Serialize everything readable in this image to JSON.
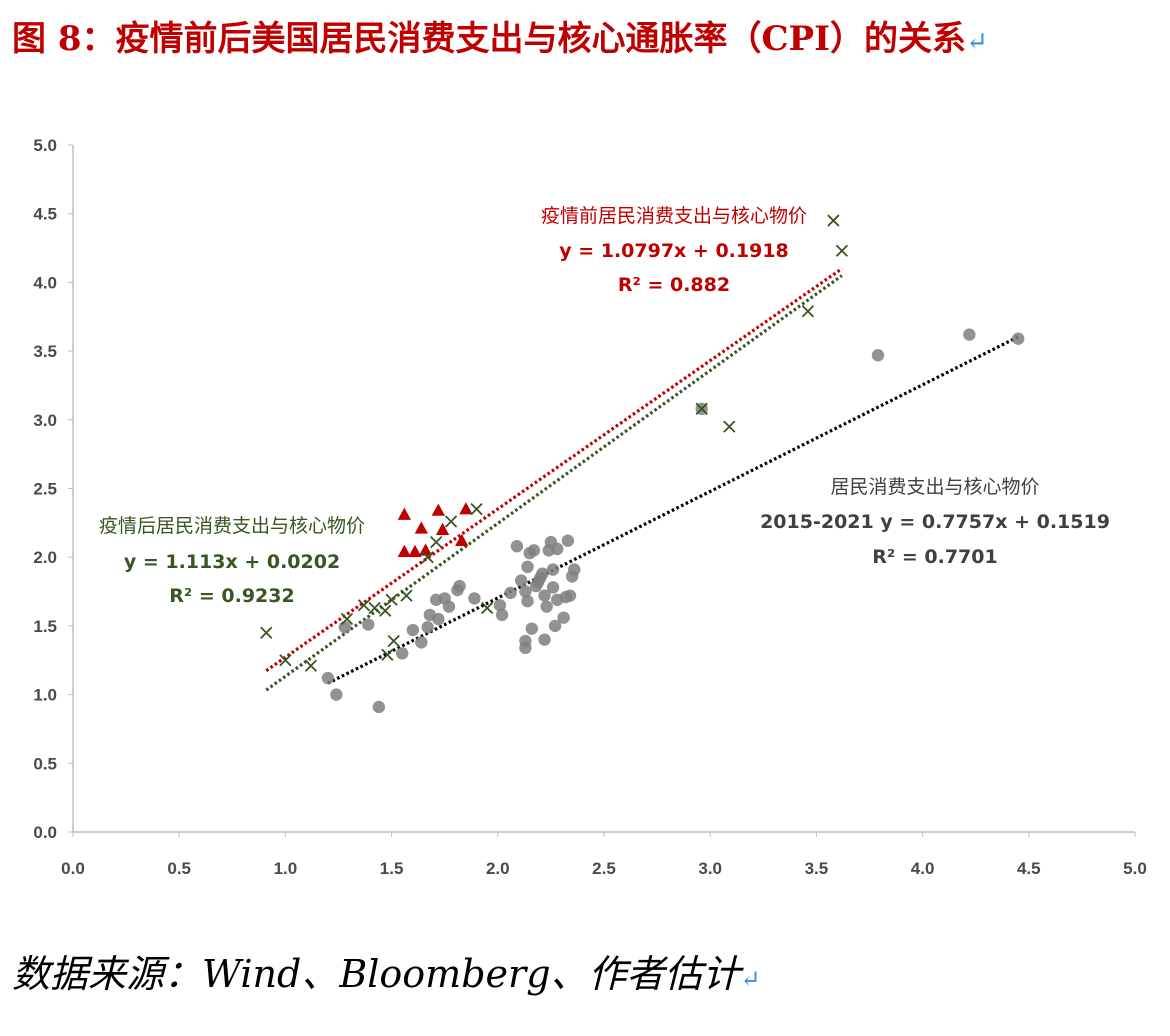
{
  "figure": {
    "title": "图 8：疫情前后美国居民消费支出与核心通胀率（CPI）的关系",
    "return_mark": "↵",
    "source": "数据来源：Wind、Bloomberg、作者估计"
  },
  "chart_data": {
    "type": "scatter",
    "xlim": [
      0,
      5
    ],
    "ylim": [
      0,
      5
    ],
    "x_ticks": [
      "0.0",
      "0.5",
      "1.0",
      "1.5",
      "2.0",
      "2.5",
      "3.0",
      "3.5",
      "4.0",
      "4.5",
      "5.0"
    ],
    "y_ticks": [
      "0.0",
      "0.5",
      "1.0",
      "1.5",
      "2.0",
      "2.5",
      "3.0",
      "3.5",
      "4.0",
      "4.5",
      "5.0"
    ],
    "grid": false,
    "legend": "none",
    "colors": {
      "pre": "#c00000",
      "post": "#375623",
      "all": "#7f7f7f",
      "all_line": "#000000"
    },
    "series": [
      {
        "key": "pre",
        "marker": "triangle",
        "points": [
          [
            1.56,
            2.31
          ],
          [
            1.72,
            2.34
          ],
          [
            1.85,
            2.35
          ],
          [
            1.64,
            2.21
          ],
          [
            1.74,
            2.2
          ],
          [
            1.56,
            2.04
          ],
          [
            1.61,
            2.04
          ],
          [
            1.66,
            2.05
          ],
          [
            1.83,
            2.12
          ]
        ],
        "trend": {
          "x_range": [
            0.91,
            3.62
          ],
          "slope": 1.0797,
          "intercept": 0.1918
        },
        "annotation": [
          "疫情前居民消费支出与核心物价",
          "y = 1.0797x + 0.1918",
          "R² = 0.882"
        ]
      },
      {
        "key": "post",
        "marker": "x",
        "points": [
          [
            0.91,
            1.45
          ],
          [
            1.0,
            1.25
          ],
          [
            1.12,
            1.21
          ],
          [
            1.29,
            1.55
          ],
          [
            1.37,
            1.65
          ],
          [
            1.42,
            1.63
          ],
          [
            1.47,
            1.61
          ],
          [
            1.5,
            1.69
          ],
          [
            1.57,
            1.72
          ],
          [
            1.48,
            1.29
          ],
          [
            1.51,
            1.39
          ],
          [
            1.67,
            2.0
          ],
          [
            1.71,
            2.11
          ],
          [
            1.78,
            2.26
          ],
          [
            1.9,
            2.35
          ],
          [
            1.95,
            1.63
          ],
          [
            2.96,
            3.08
          ],
          [
            3.09,
            2.95
          ],
          [
            3.46,
            3.79
          ],
          [
            3.58,
            4.45
          ],
          [
            3.62,
            4.23
          ]
        ],
        "trend": {
          "x_range": [
            0.91,
            3.62
          ],
          "slope": 1.113,
          "intercept": 0.0202
        },
        "annotation": [
          "疫情后居民消费支出与核心物价",
          "y = 1.113x + 0.0202",
          "R² = 0.9232"
        ]
      },
      {
        "key": "all",
        "marker": "circle",
        "points": [
          [
            1.2,
            1.12
          ],
          [
            1.24,
            1.0
          ],
          [
            1.28,
            1.49
          ],
          [
            1.39,
            1.51
          ],
          [
            1.44,
            0.91
          ],
          [
            1.55,
            1.3
          ],
          [
            1.6,
            1.47
          ],
          [
            1.64,
            1.38
          ],
          [
            1.67,
            1.49
          ],
          [
            1.68,
            1.58
          ],
          [
            1.71,
            1.69
          ],
          [
            1.72,
            1.55
          ],
          [
            1.75,
            1.7
          ],
          [
            1.77,
            1.64
          ],
          [
            1.81,
            1.76
          ],
          [
            1.82,
            1.79
          ],
          [
            1.89,
            1.7
          ],
          [
            2.01,
            1.65
          ],
          [
            2.02,
            1.58
          ],
          [
            2.06,
            1.74
          ],
          [
            2.09,
            2.08
          ],
          [
            2.11,
            1.83
          ],
          [
            2.13,
            1.75
          ],
          [
            2.13,
            1.39
          ],
          [
            2.13,
            1.34
          ],
          [
            2.14,
            1.68
          ],
          [
            2.14,
            1.93
          ],
          [
            2.15,
            2.03
          ],
          [
            2.16,
            1.48
          ],
          [
            2.17,
            2.05
          ],
          [
            2.18,
            1.79
          ],
          [
            2.19,
            1.82
          ],
          [
            2.2,
            1.85
          ],
          [
            2.21,
            1.88
          ],
          [
            2.22,
            1.72
          ],
          [
            2.22,
            1.4
          ],
          [
            2.23,
            1.64
          ],
          [
            2.24,
            2.05
          ],
          [
            2.25,
            2.11
          ],
          [
            2.26,
            1.91
          ],
          [
            2.26,
            1.78
          ],
          [
            2.27,
            1.5
          ],
          [
            2.28,
            2.06
          ],
          [
            2.28,
            1.69
          ],
          [
            2.31,
            1.56
          ],
          [
            2.32,
            1.71
          ],
          [
            2.33,
            2.12
          ],
          [
            2.34,
            1.72
          ],
          [
            2.35,
            1.86
          ],
          [
            2.36,
            1.91
          ],
          [
            2.96,
            3.08
          ],
          [
            3.79,
            3.47
          ],
          [
            4.22,
            3.62
          ],
          [
            4.45,
            3.59
          ]
        ],
        "trend": {
          "x_range": [
            1.2,
            4.45
          ],
          "slope": 0.7757,
          "intercept": 0.1519
        },
        "annotation": [
          "居民消费支出与核心物价",
          "2015-2021 y = 0.7757x + 0.1519",
          "R² = 0.7701"
        ]
      }
    ]
  }
}
